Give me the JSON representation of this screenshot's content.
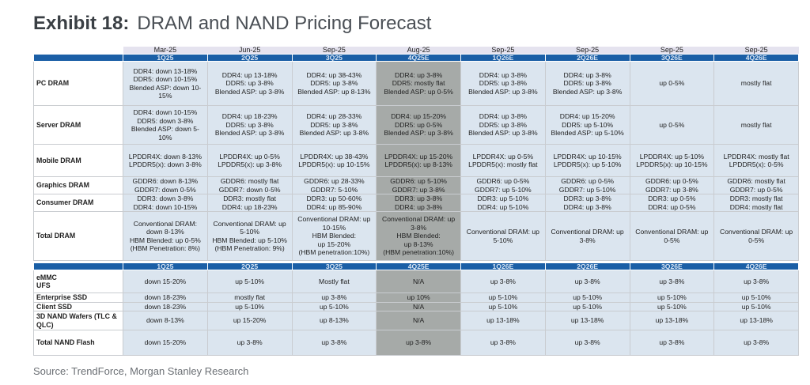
{
  "title": {
    "exhibit": "Exhibit 18:",
    "text": "DRAM and NAND Pricing Forecast"
  },
  "dram": {
    "dates": [
      "Mar-25",
      "Jun-25",
      "Sep-25",
      "Aug-25",
      "Sep-25",
      "Sep-25",
      "Sep-25",
      "Sep-25"
    ],
    "quarters": [
      "1Q25",
      "2Q25",
      "3Q25",
      "4Q25E",
      "1Q26E",
      "2Q26E",
      "3Q26E",
      "4Q26E"
    ],
    "highlight_column": "4Q25E",
    "rows": [
      {
        "label": "PC DRAM",
        "cells": [
          "DDR4: down 13-18%\nDDR5: down 10-15%\nBlended ASP: down 10-15%",
          "DDR4: up 13-18%\nDDR5: up 3-8%\nBlended ASP: up 3-8%",
          "DDR4: up 38-43%\nDDR5: up 3-8%\nBlended ASP: up 8-13%",
          "DDR4: up 3-8%\nDDR5: mostly flat\nBlended ASP: up 0-5%",
          "DDR4: up 3-8%\nDDR5: up 3-8%\nBlended ASP: up 3-8%",
          "DDR4: up 3-8%\nDDR5: up 3-8%\nBlended ASP: up 3-8%",
          "up 0-5%",
          "mostly flat"
        ]
      },
      {
        "label": "Server DRAM",
        "cells": [
          "DDR4: down 10-15%\nDDR5: down 3-8%\nBlended ASP: down 5-10%",
          "DDR4: up 18-23%\nDDR5: up 3-8%\nBlended ASP: up 3-8%",
          "DDR4: up 28-33%\nDDR5: up 3-8%\nBlended ASP: up 3-8%",
          "DDR4: up 15-20%\nDDR5: up 0-5%\nBlended ASP: up 3-8%",
          "DDR4: up 3-8%\nDDR5: up 3-8%\nBlended ASP: up 3-8%",
          "DDR4: up 15-20%\nDDR5: up 5-10%\nBlended ASP: up 5-10%",
          "up 0-5%",
          "mostly flat"
        ]
      },
      {
        "label": "Mobile DRAM",
        "cells": [
          "LPDDR4X: down 8-13%\nLPDDR5(x): down 3-8%",
          "LPDDR4X: up 0-5%\nLPDDR5(x): up 3-8%",
          "LPDDR4X: up 38-43%\nLPDDR5(x): up 10-15%",
          "LPDDR4X: up 15-20%\nLPDDR5(x): up 8-13%",
          "LPDDR4X: up 0-5%\nLPDDR5(x): mostly flat",
          "LPDDR4X: up 10-15%\nLPDDR5(x): up 5-10%",
          "LPDDR4X: up 5-10%\nLPDDR5(x): up 10-15%",
          "LPDDR4X: mostly flat\nLPDDR5(x): 0-5%"
        ]
      },
      {
        "label": "Graphics DRAM",
        "cells": [
          "GDDR6: down 8-13%\nGDDR7: down 0-5%",
          "GDDR6: mostly flat\nGDDR7: down 0-5%",
          "GDDR6: up 28-33%\nGDDR7: 5-10%",
          "GDDR6: up 5-10%\nGDDR7: up 3-8%",
          "GDDR6: up 0-5%\nGDDR7: up 5-10%",
          "GDDR6: up 0-5%\nGDDR7: up 5-10%",
          "GDDR6: up 0-5%\nGDDR7: up 3-8%",
          "GDDR6: mostly flat\nGDDR7: up 0-5%"
        ]
      },
      {
        "label": "Consumer DRAM",
        "cells": [
          "DDR3: down 3-8%\nDDR4: down 10-15%",
          "DDR3: mostly flat\nDDR4: up 18-23%",
          "DDR3: up 50-60%\nDDR4: up 85-90%",
          "DDR3: up 3-8%\nDDR4: up 3-8%",
          "DDR3: up 5-10%\nDDR4: up 5-10%",
          "DDR3: up 3-8%\nDDR4: up 3-8%",
          "DDR3: up 0-5%\nDDR4: up 0-5%",
          "DDR3: mostly flat\nDDR4: mostly flat"
        ]
      },
      {
        "label": "Total DRAM",
        "cells": [
          "Conventional DRAM: down 8-13%\nHBM Blended: up 0-5%\n(HBM Penetration: 8%)",
          "Conventional DRAM: up 5-10%\nHBM Blended: up 5-10%\n(HBM Penetration: 9%)",
          "Conventional DRAM: up 10-15%\nHBM Blended:\nup 15-20%\n(HBM penetration:10%)",
          "Conventional DRAM: up 3-8%\nHBM Blended:\nup 8-13%\n(HBM penetration:10%)",
          "Conventional DRAM: up 5-10%",
          "Conventional DRAM: up 3-8%",
          "Conventional DRAM: up 0-5%",
          "Conventional DRAM: up 0-5%"
        ]
      }
    ]
  },
  "nand": {
    "quarters": [
      "1Q25",
      "2Q25",
      "3Q25",
      "4Q25E",
      "1Q26E",
      "2Q26E",
      "3Q26E",
      "4Q26E"
    ],
    "rows": [
      {
        "label": "eMMC\nUFS",
        "cells": [
          "down 15-20%",
          "up 5-10%",
          "Mostly flat",
          "N/A",
          "up 3-8%",
          "up 3-8%",
          "up 3-8%",
          "up 3-8%"
        ]
      },
      {
        "label": "Enterprise SSD",
        "cells": [
          "down 18-23%",
          "mostly flat",
          "up 3-8%",
          "up 10%",
          "up 5-10%",
          "up 5-10%",
          "up 5-10%",
          "up 5-10%"
        ]
      },
      {
        "label": "Client SSD",
        "cells": [
          "down 18-23%",
          "up 5-10%",
          "up 5-10%",
          "N/A",
          "up 5-10%",
          "up 5-10%",
          "up 5-10%",
          "up 5-10%"
        ]
      },
      {
        "label": "3D NAND Wafers (TLC & QLC)",
        "cells": [
          "down 8-13%",
          "up 15-20%",
          "up 8-13%",
          "N/A",
          "up 13-18%",
          "up 13-18%",
          "up 13-18%",
          "up 13-18%"
        ]
      },
      {
        "label": "Total NAND Flash",
        "cells": [
          "down 15-20%",
          "up 3-8%",
          "up 3-8%",
          "up 3-8%",
          "up 3-8%",
          "up 3-8%",
          "up 3-8%",
          "up 3-8%"
        ]
      }
    ]
  },
  "source": "Source: TrendForce, Morgan Stanley Research",
  "colors": {
    "header_blue": "#1b5fa6",
    "cell_bg": "#dbe5ef",
    "highlight_grey": "#a6aaa8",
    "date_bg": "#e5e3ef"
  }
}
